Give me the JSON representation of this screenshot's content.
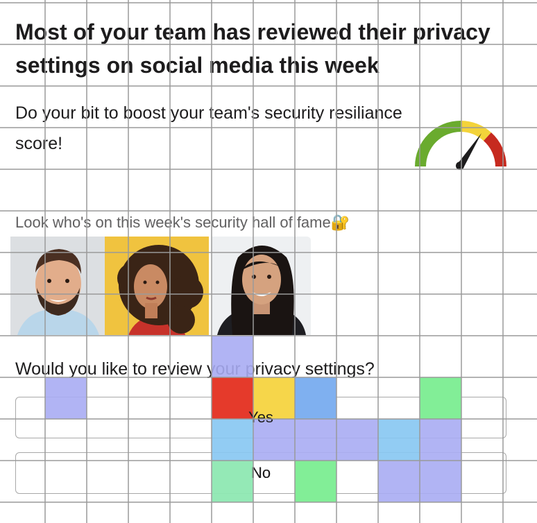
{
  "message": {
    "title": "Most of your team has reviewed their privacy settings on social media this week",
    "subtitle": "Do your bit to boost your team's security resiliance score!",
    "hall_of_fame_label": "Look who's on this week's security hall of fame",
    "hall_of_fame_icon": "🔐",
    "question": "Would you like to review your privacy settings?",
    "options": [
      {
        "label": "Yes"
      },
      {
        "label": "No"
      }
    ]
  },
  "gauge": {
    "icon": "speedometer-gauge-icon",
    "segments": [
      "#6aab2e",
      "#f3d33a",
      "#c62a1f"
    ]
  },
  "people": [
    {
      "name": "person-1",
      "background": "#d9dcdf"
    },
    {
      "name": "person-2",
      "background": "#f0c33f"
    },
    {
      "name": "person-3",
      "background": "#eef0f2"
    }
  ],
  "overlay": {
    "colors": {
      "lavender": "#a9acf3",
      "red": "#e53a2b",
      "yellow": "#f6d64a",
      "blue": "#7fb0f0",
      "green": "#82ee97",
      "sky": "#86c6f2",
      "mint": "#8ee8b2"
    }
  }
}
